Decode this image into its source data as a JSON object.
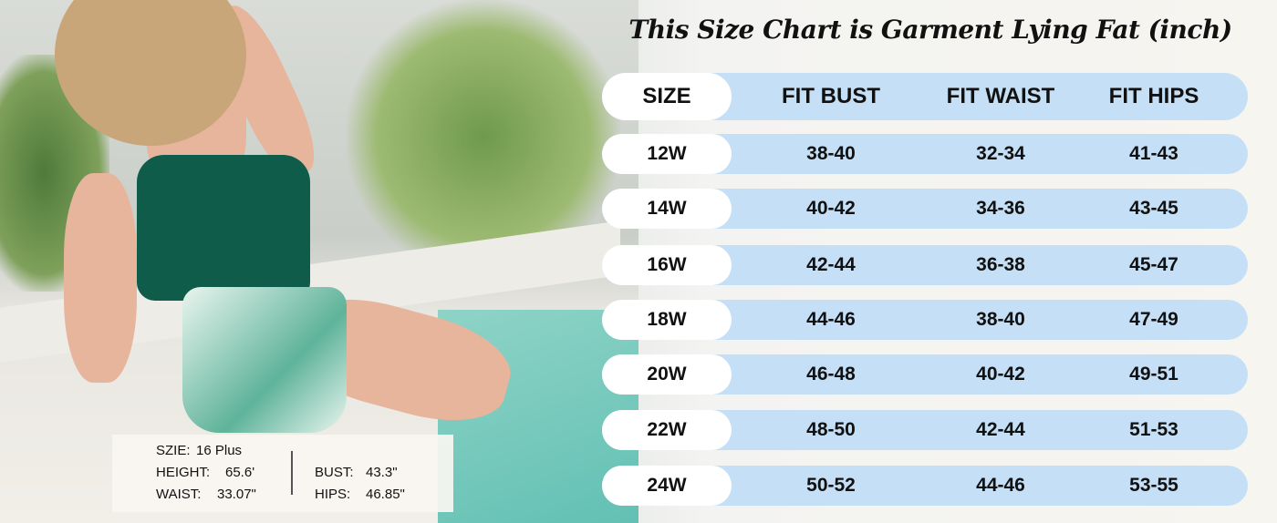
{
  "title": "This Size Chart is Garment Lying Fat (inch)",
  "colors": {
    "row_fill": "#c5e0f6",
    "size_pill": "#ffffff",
    "text": "#111111"
  },
  "chart_data": {
    "type": "table",
    "title": "This Size Chart is Garment Lying Fat (inch)",
    "columns": [
      "SIZE",
      "FIT BUST",
      "FIT WAIST",
      "FIT HIPS"
    ],
    "rows": [
      [
        "12W",
        "38-40",
        "32-34",
        "41-43"
      ],
      [
        "14W",
        "40-42",
        "34-36",
        "43-45"
      ],
      [
        "16W",
        "42-44",
        "36-38",
        "45-47"
      ],
      [
        "18W",
        "44-46",
        "38-40",
        "47-49"
      ],
      [
        "20W",
        "46-48",
        "40-42",
        "49-51"
      ],
      [
        "22W",
        "48-50",
        "42-44",
        "51-53"
      ],
      [
        "24W",
        "50-52",
        "44-46",
        "53-55"
      ]
    ]
  },
  "model_info": {
    "size_label": "SZIE:",
    "size_value": "16 Plus",
    "height_label": "HEIGHT:",
    "height_value": "65.6'",
    "waist_label": "WAIST:",
    "waist_value": "33.07\"",
    "bust_label": "BUST:",
    "bust_value": "43.3\"",
    "hips_label": "HIPS:",
    "hips_value": "46.85\""
  }
}
